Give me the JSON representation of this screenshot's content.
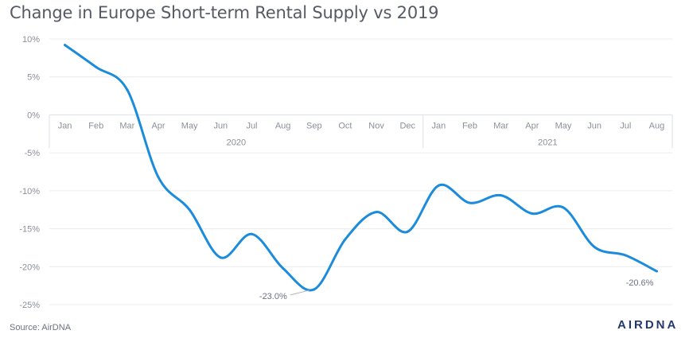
{
  "title": "Change in Europe Short-term Rental Supply vs 2019",
  "source": "Source: AirDNA",
  "logo": "AIRDNA",
  "chart_data": {
    "type": "line",
    "title": "Change in Europe Short-term Rental Supply vs 2019",
    "xlabel": "",
    "ylabel": "",
    "ylim": [
      -25,
      10
    ],
    "yticks": [
      10,
      5,
      0,
      -5,
      -10,
      -15,
      -20,
      -25
    ],
    "ytick_labels": [
      "10%",
      "5%",
      "0%",
      "-5%",
      "-10%",
      "-15%",
      "-20%",
      "-25%"
    ],
    "grid": true,
    "legend": "none",
    "line_color": "#1b8bdc",
    "categories": [
      "Jan",
      "Feb",
      "Mar",
      "Apr",
      "May",
      "Jun",
      "Jul",
      "Aug",
      "Sep",
      "Oct",
      "Nov",
      "Dec",
      "Jan",
      "Feb",
      "Mar",
      "Apr",
      "May",
      "Jun",
      "Jul",
      "Aug"
    ],
    "year_groups": [
      {
        "label": "2020",
        "start": 0,
        "end": 11
      },
      {
        "label": "2021",
        "start": 12,
        "end": 19
      }
    ],
    "series": [
      {
        "values": [
          9.2,
          6.3,
          3.3,
          -8.2,
          -12.5,
          -18.8,
          -15.7,
          -20.2,
          -23.0,
          -16.4,
          -12.8,
          -15.4,
          -9.3,
          -11.6,
          -10.6,
          -13.0,
          -12.2,
          -17.4,
          -18.5,
          -20.6
        ]
      }
    ],
    "annotations": [
      {
        "index": 8,
        "label": "-23.0%"
      },
      {
        "index": 19,
        "label": "-20.6%"
      }
    ]
  }
}
